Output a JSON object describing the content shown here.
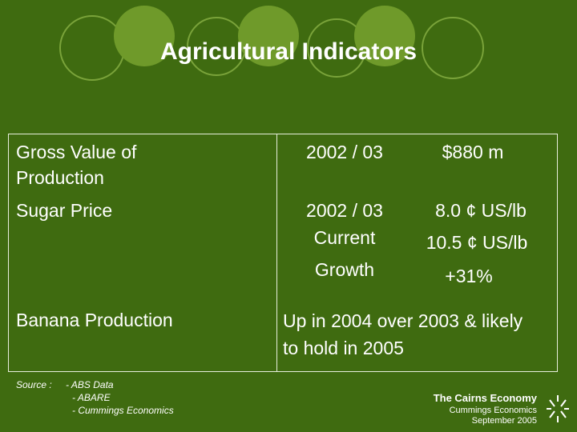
{
  "header": {
    "title": "Agricultural Indicators"
  },
  "table": {
    "rows": [
      [
        [
          "Gross Value of Production"
        ],
        [
          "2002 / 03"
        ],
        [
          "$880 m"
        ]
      ],
      [
        [
          "Sugar Price"
        ],
        [
          "2002 / 03",
          "Current",
          "Growth"
        ],
        [
          "8.0 ¢ US/lb",
          "10.5 ¢ US/lb",
          "+31%"
        ]
      ],
      [
        [
          "Banana Production"
        ],
        [
          "Up in 2004 over 2003 & likely to hold in 2005"
        ]
      ]
    ]
  },
  "source": {
    "label": "Source :",
    "items": [
      "- ABS Data",
      "- ABARE",
      "- Cummings Economics"
    ]
  },
  "footer": {
    "title": "The Cairns Economy",
    "lines": [
      "Cummings Economics",
      "September 2005"
    ]
  }
}
